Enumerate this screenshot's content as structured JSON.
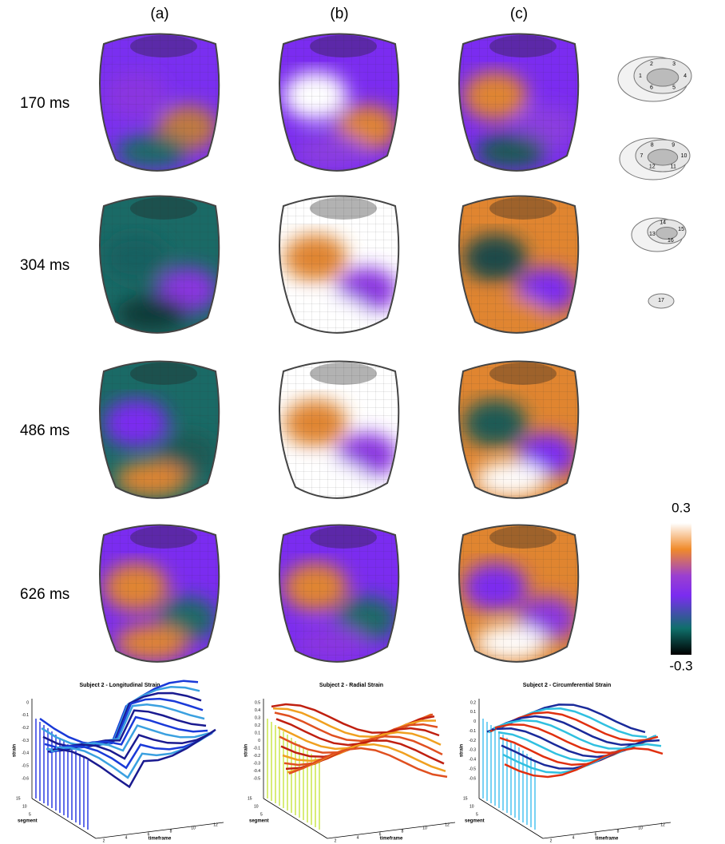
{
  "columns": [
    "(a)",
    "(b)",
    "(c)"
  ],
  "rows": [
    "170 ms",
    "304 ms",
    "486 ms",
    "626 ms"
  ],
  "colorbar": {
    "max": "0.3",
    "min": "-0.3"
  },
  "segments": [
    "1",
    "2",
    "3",
    "4",
    "5",
    "6",
    "7",
    "8",
    "9",
    "10",
    "11",
    "12",
    "13",
    "14",
    "15",
    "16",
    "17"
  ],
  "plots": [
    {
      "title": "Subject 2 - Longitudinal Strain",
      "y_label": "strain",
      "depth_label": "segment",
      "x_label": "timeframe",
      "y_ticks": [
        "0",
        "-0.1",
        "-0.2",
        "-0.3",
        "-0.4",
        "-0.5",
        "-0.6"
      ],
      "depth_ticks": [
        "15",
        "10",
        "5"
      ],
      "x_ticks": [
        "2",
        "4",
        "6",
        "8",
        "10",
        "12"
      ]
    },
    {
      "title": "Subject 2 - Radial Strain",
      "y_label": "strain",
      "depth_label": "segment",
      "x_label": "timeframe",
      "y_ticks": [
        "0.5",
        "0.4",
        "0.3",
        "0.2",
        "0.1",
        "0",
        "-0.1",
        "-0.2",
        "-0.3",
        "-0.4",
        "-0.5"
      ],
      "depth_ticks": [
        "15",
        "10",
        "5"
      ],
      "x_ticks": [
        "2",
        "4",
        "6",
        "8",
        "10",
        "12"
      ]
    },
    {
      "title": "Subject 2 - Circumferential Strain",
      "y_label": "strain",
      "depth_label": "segment",
      "x_label": "timeframe",
      "y_ticks": [
        "0.2",
        "0.1",
        "0",
        "-0.1",
        "-0.2",
        "-0.3",
        "-0.4",
        "-0.5",
        "-0.6"
      ],
      "depth_ticks": [
        "15",
        "10",
        "5"
      ],
      "x_ticks": [
        "2",
        "4",
        "6",
        "8",
        "10",
        "12"
      ]
    }
  ]
}
